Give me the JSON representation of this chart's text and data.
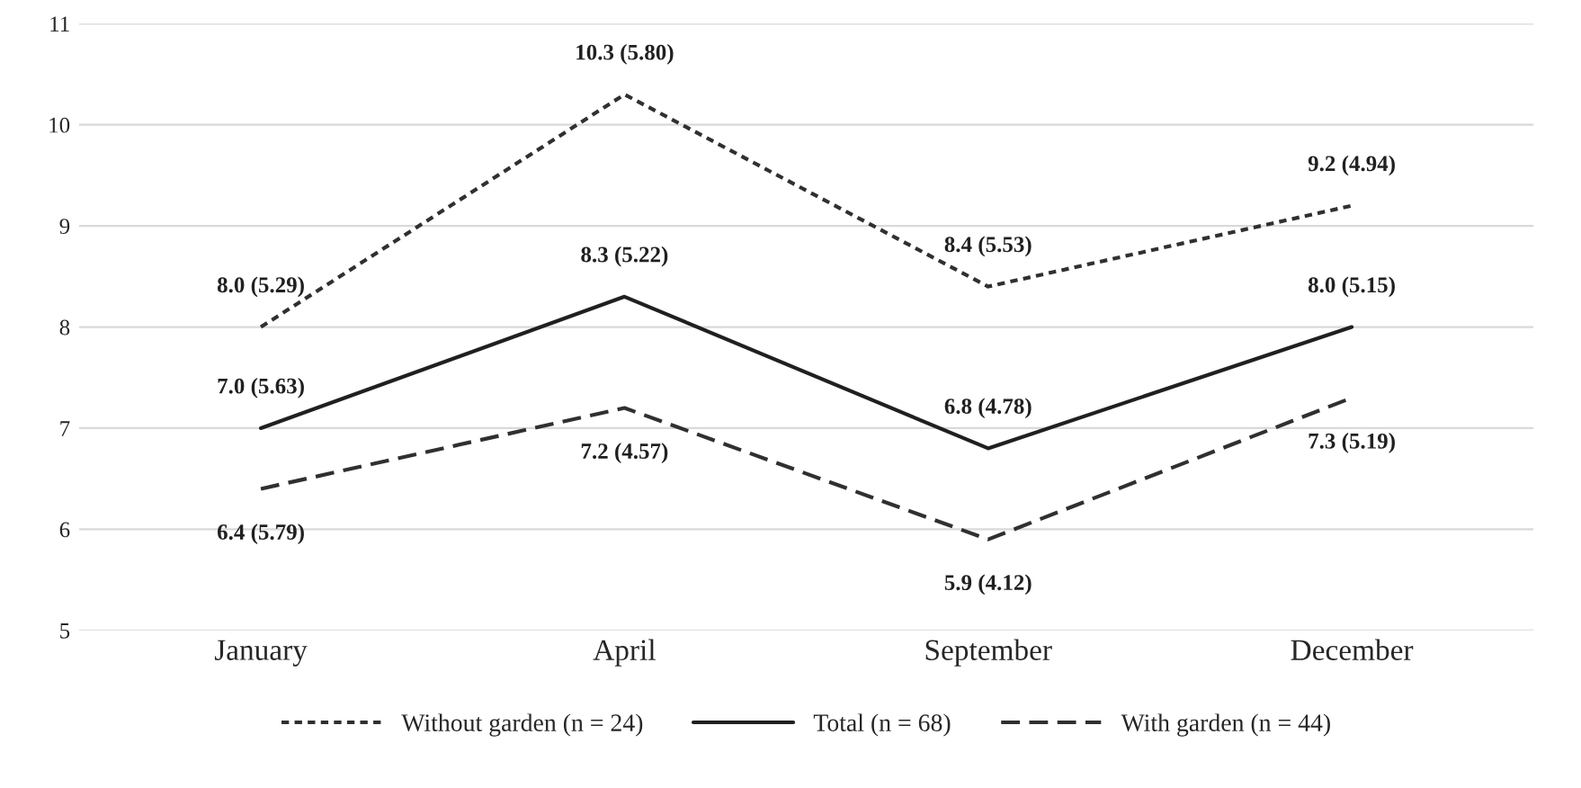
{
  "chart_data": {
    "type": "line",
    "categories": [
      "January",
      "April",
      "September",
      "December"
    ],
    "series": [
      {
        "name": "Without garden (n = 24)",
        "color": "#303030",
        "line_style": "dotted",
        "values": [
          8.0,
          10.3,
          8.4,
          9.2
        ],
        "value_labels": [
          "8.0 (5.29)",
          "10.3 (5.80)",
          "8.4 (5.53)",
          "9.2 (4.94)"
        ]
      },
      {
        "name": "Total (n = 68)",
        "color": "#202020",
        "line_style": "solid",
        "values": [
          7.0,
          8.3,
          6.8,
          8.0
        ],
        "value_labels": [
          "7.0 (5.63)",
          "8.3 (5.22)",
          "6.8 (4.78)",
          "8.0 (5.15)"
        ]
      },
      {
        "name": "With garden (n = 44)",
        "color": "#303030",
        "line_style": "dashed",
        "values": [
          6.4,
          7.2,
          5.9,
          7.3
        ],
        "value_labels": [
          "6.4 (5.79)",
          "7.2 (4.57)",
          "5.9 (4.12)",
          "7.3 (5.19)"
        ]
      }
    ],
    "ylim": [
      5,
      11
    ],
    "yticks": [
      5,
      6,
      7,
      8,
      9,
      10,
      11
    ],
    "grid": "y",
    "legend": "bottom",
    "marker": "none"
  }
}
